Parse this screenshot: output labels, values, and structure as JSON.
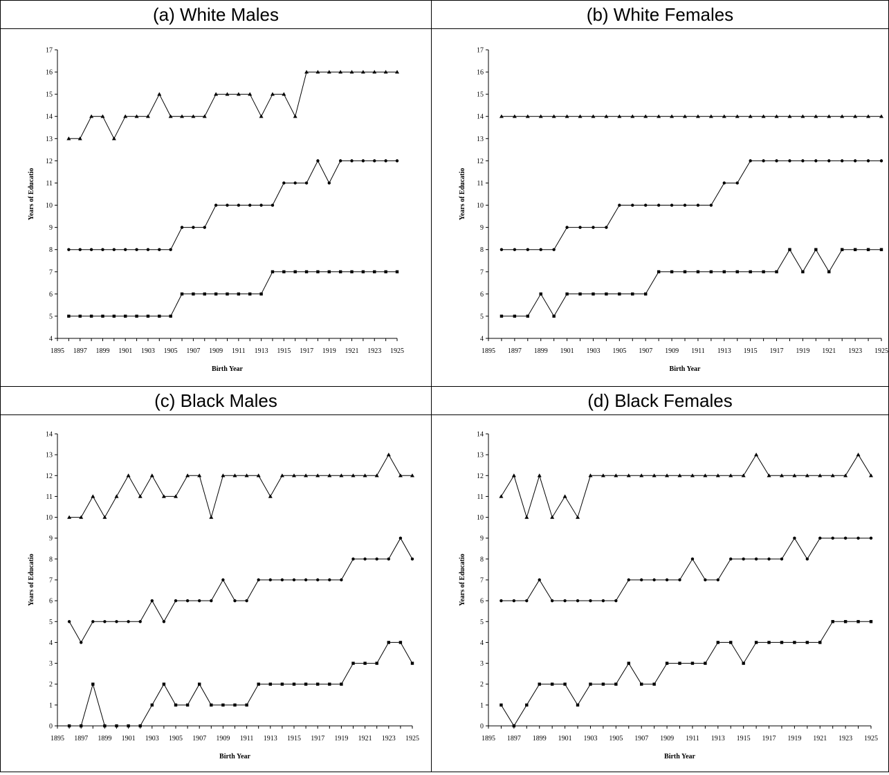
{
  "chart_data": [
    {
      "type": "line",
      "title": "(a) White Males",
      "xlabel": "Birth Year",
      "ylabel": "Years of Educatio",
      "ylim": [
        4,
        17
      ],
      "ytick_step": 1,
      "xlim": [
        1895,
        1925
      ],
      "xticks": [
        "1895",
        "1897",
        "1899",
        "1901",
        "1903",
        "1905",
        "1907",
        "1909",
        "1911",
        "1913",
        "1915",
        "1917",
        "1919",
        "1921",
        "1923",
        "1925"
      ],
      "x": [
        1896,
        1897,
        1898,
        1899,
        1900,
        1901,
        1902,
        1903,
        1904,
        1905,
        1906,
        1907,
        1908,
        1909,
        1910,
        1911,
        1912,
        1913,
        1914,
        1915,
        1916,
        1917,
        1918,
        1919,
        1920,
        1921,
        1922,
        1923,
        1924,
        1925
      ],
      "series": [
        {
          "marker": "triangle",
          "values": [
            13,
            13,
            14,
            14,
            13,
            14,
            14,
            14,
            15,
            14,
            14,
            14,
            14,
            15,
            15,
            15,
            15,
            14,
            15,
            15,
            14,
            16,
            16,
            16,
            16,
            16,
            16,
            16,
            16,
            16
          ]
        },
        {
          "marker": "circle",
          "values": [
            8,
            8,
            8,
            8,
            8,
            8,
            8,
            8,
            8,
            8,
            9,
            9,
            9,
            10,
            10,
            10,
            10,
            10,
            10,
            11,
            11,
            11,
            12,
            11,
            12,
            12,
            12,
            12,
            12,
            12
          ]
        },
        {
          "marker": "square",
          "values": [
            5,
            5,
            5,
            5,
            5,
            5,
            5,
            5,
            5,
            5,
            6,
            6,
            6,
            6,
            6,
            6,
            6,
            6,
            7,
            7,
            7,
            7,
            7,
            7,
            7,
            7,
            7,
            7,
            7,
            7
          ]
        }
      ]
    },
    {
      "type": "line",
      "title": "(b) White Females",
      "xlabel": "Birth Year",
      "ylabel": "Years of Educatio",
      "ylim": [
        4,
        17
      ],
      "ytick_step": 1,
      "xlim": [
        1895,
        1925
      ],
      "xticks": [
        "1895",
        "1897",
        "1899",
        "1901",
        "1903",
        "1905",
        "1907",
        "1909",
        "1911",
        "1913",
        "1915",
        "1917",
        "1919",
        "1921",
        "1923",
        "1925"
      ],
      "x": [
        1896,
        1897,
        1898,
        1899,
        1900,
        1901,
        1902,
        1903,
        1904,
        1905,
        1906,
        1907,
        1908,
        1909,
        1910,
        1911,
        1912,
        1913,
        1914,
        1915,
        1916,
        1917,
        1918,
        1919,
        1920,
        1921,
        1922,
        1923,
        1924,
        1925
      ],
      "series": [
        {
          "marker": "triangle",
          "values": [
            14,
            14,
            14,
            14,
            14,
            14,
            14,
            14,
            14,
            14,
            14,
            14,
            14,
            14,
            14,
            14,
            14,
            14,
            14,
            14,
            14,
            14,
            14,
            14,
            14,
            14,
            14,
            14,
            14,
            14
          ]
        },
        {
          "marker": "circle",
          "values": [
            8,
            8,
            8,
            8,
            8,
            9,
            9,
            9,
            9,
            10,
            10,
            10,
            10,
            10,
            10,
            10,
            10,
            11,
            11,
            12,
            12,
            12,
            12,
            12,
            12,
            12,
            12,
            12,
            12,
            12
          ]
        },
        {
          "marker": "square",
          "values": [
            5,
            5,
            5,
            6,
            5,
            6,
            6,
            6,
            6,
            6,
            6,
            6,
            7,
            7,
            7,
            7,
            7,
            7,
            7,
            7,
            7,
            7,
            8,
            7,
            8,
            7,
            8,
            8,
            8,
            8
          ]
        }
      ]
    },
    {
      "type": "line",
      "title": "(c) Black Males",
      "xlabel": "Birth Year",
      "ylabel": "Years of Educatio",
      "ylim": [
        0,
        14
      ],
      "ytick_step": 1,
      "xlim": [
        1895,
        1925
      ],
      "xticks": [
        "1895",
        "1897",
        "1899",
        "1901",
        "1903",
        "1905",
        "1907",
        "1909",
        "1911",
        "1913",
        "1915",
        "1917",
        "1919",
        "1921",
        "1923",
        "1925"
      ],
      "x": [
        1896,
        1897,
        1898,
        1899,
        1900,
        1901,
        1902,
        1903,
        1904,
        1905,
        1906,
        1907,
        1908,
        1909,
        1910,
        1911,
        1912,
        1913,
        1914,
        1915,
        1916,
        1917,
        1918,
        1919,
        1920,
        1921,
        1922,
        1923,
        1924,
        1925
      ],
      "series": [
        {
          "marker": "triangle",
          "values": [
            10,
            10,
            11,
            10,
            11,
            12,
            11,
            12,
            11,
            11,
            12,
            12,
            10,
            12,
            12,
            12,
            12,
            11,
            12,
            12,
            12,
            12,
            12,
            12,
            12,
            12,
            12,
            13,
            12,
            12
          ]
        },
        {
          "marker": "circle",
          "values": [
            5,
            4,
            5,
            5,
            5,
            5,
            5,
            6,
            5,
            6,
            6,
            6,
            6,
            7,
            6,
            6,
            7,
            7,
            7,
            7,
            7,
            7,
            7,
            7,
            8,
            8,
            8,
            8,
            9,
            8
          ]
        },
        {
          "marker": "square",
          "values": [
            0,
            0,
            2,
            0,
            0,
            0,
            0,
            1,
            2,
            1,
            1,
            2,
            1,
            1,
            1,
            1,
            2,
            2,
            2,
            2,
            2,
            2,
            2,
            2,
            3,
            3,
            3,
            4,
            4,
            3
          ]
        }
      ]
    },
    {
      "type": "line",
      "title": "(d) Black Females",
      "xlabel": "Birth Year",
      "ylabel": "Years of Educatio",
      "ylim": [
        0,
        14
      ],
      "ytick_step": 1,
      "xlim": [
        1895,
        1925
      ],
      "xticks": [
        "1895",
        "1897",
        "1899",
        "1901",
        "1903",
        "1905",
        "1907",
        "1909",
        "1911",
        "1913",
        "1915",
        "1917",
        "1919",
        "1921",
        "1923",
        "1925"
      ],
      "x": [
        1896,
        1897,
        1898,
        1899,
        1900,
        1901,
        1902,
        1903,
        1904,
        1905,
        1906,
        1907,
        1908,
        1909,
        1910,
        1911,
        1912,
        1913,
        1914,
        1915,
        1916,
        1917,
        1918,
        1919,
        1920,
        1921,
        1922,
        1923,
        1924,
        1925
      ],
      "series": [
        {
          "marker": "triangle",
          "values": [
            11,
            12,
            10,
            12,
            10,
            11,
            10,
            12,
            12,
            12,
            12,
            12,
            12,
            12,
            12,
            12,
            12,
            12,
            12,
            12,
            13,
            12,
            12,
            12,
            12,
            12,
            12,
            12,
            13,
            12
          ]
        },
        {
          "marker": "circle",
          "values": [
            6,
            6,
            6,
            7,
            6,
            6,
            6,
            6,
            6,
            6,
            7,
            7,
            7,
            7,
            7,
            8,
            7,
            7,
            8,
            8,
            8,
            8,
            8,
            9,
            8,
            9,
            9,
            9,
            9,
            9
          ]
        },
        {
          "marker": "square",
          "values": [
            1,
            0,
            1,
            2,
            2,
            2,
            1,
            2,
            2,
            2,
            3,
            2,
            2,
            3,
            3,
            3,
            3,
            4,
            4,
            3,
            4,
            4,
            4,
            4,
            4,
            4,
            5,
            5,
            5,
            5
          ]
        }
      ]
    }
  ]
}
